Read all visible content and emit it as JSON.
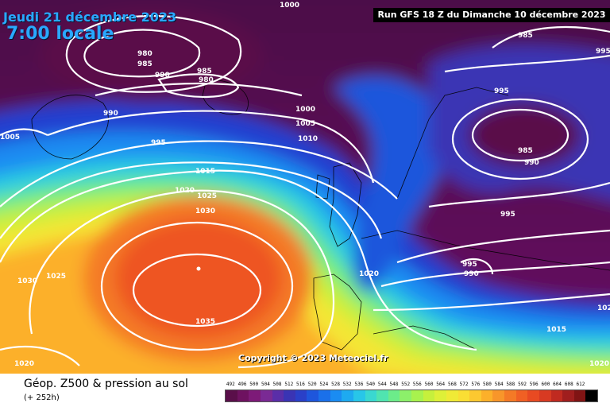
{
  "header": {
    "date": "Jeudi 21 décembre 2023",
    "time": "7:00 locale",
    "run": "Run GFS 18 Z du Dimanche 10 décembre 2023"
  },
  "copyright": "Copyright © 2023 Meteociel.fr",
  "legend": {
    "title": "Géop. Z500 & pression au sol",
    "subtitle": "(+ 252h)",
    "scale_values": [
      "492",
      "496",
      "500",
      "504",
      "508",
      "512",
      "516",
      "520",
      "524",
      "528",
      "532",
      "536",
      "540",
      "544",
      "548",
      "552",
      "556",
      "560",
      "564",
      "568",
      "572",
      "576",
      "580",
      "584",
      "588",
      "592",
      "596",
      "600",
      "604",
      "608",
      "612"
    ],
    "scale_colors": [
      "#5a0f4a",
      "#6e1260",
      "#7d1a78",
      "#7a2a94",
      "#5a2ea8",
      "#3a34b4",
      "#2a40c8",
      "#1e56dc",
      "#1a70ea",
      "#1a8cf2",
      "#1eaaf0",
      "#28c6e8",
      "#3ad8d0",
      "#50e4b0",
      "#6cec8a",
      "#8cf06a",
      "#a8f24e",
      "#c6f03c",
      "#def038",
      "#f0ea36",
      "#fade34",
      "#fcc830",
      "#fcb02a",
      "#f8962a",
      "#f47a26",
      "#f06024",
      "#e84a22",
      "#d83a22",
      "#c02a20",
      "#a01e1e",
      "#801414",
      "#000000"
    ]
  },
  "isobar_labels": [
    "1000",
    "980",
    "985",
    "990",
    "985",
    "980",
    "990",
    "1005",
    "995",
    "1000",
    "1005",
    "1010",
    "1015",
    "1020",
    "1025",
    "1030",
    "1025",
    "1030",
    "1035",
    "1020",
    "1020",
    "985",
    "995",
    "985",
    "990",
    "995",
    "995",
    "990",
    "1015",
    "995",
    "102",
    "1020"
  ]
}
